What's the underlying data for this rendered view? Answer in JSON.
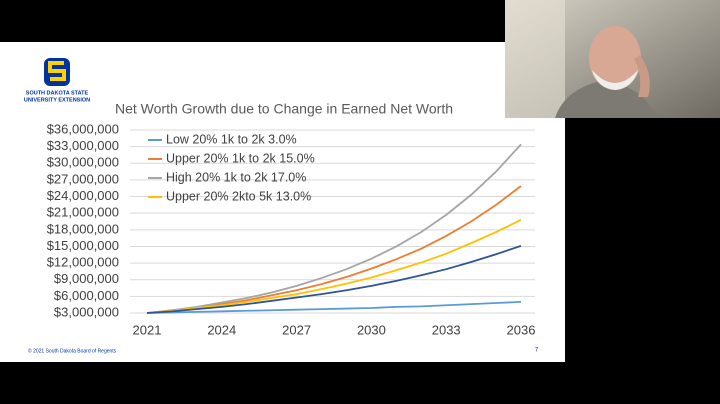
{
  "slide": {
    "logo_line1": "SOUTH DAKOTA STATE",
    "logo_line2": "UNIVERSITY EXTENSION",
    "footer": "© 2021 South Dakota Board of Regents",
    "page_number": "7"
  },
  "chart_data": {
    "type": "line",
    "title": "Net Worth Growth due to Change in Earned Net Worth",
    "x": [
      2021,
      2022,
      2023,
      2024,
      2025,
      2026,
      2027,
      2028,
      2029,
      2030,
      2031,
      2032,
      2033,
      2034,
      2035,
      2036
    ],
    "xlim": [
      2021,
      2036
    ],
    "xticks": [
      2021,
      2024,
      2027,
      2030,
      2033,
      2036
    ],
    "ylim": [
      3000000,
      36000000
    ],
    "yticks": [
      {
        "value": 3000000,
        "label": "$3,000,000"
      },
      {
        "value": 6000000,
        "label": "$6,000,000"
      },
      {
        "value": 9000000,
        "label": "$9,000,000"
      },
      {
        "value": 12000000,
        "label": "$12,000,000"
      },
      {
        "value": 15000000,
        "label": "$15,000,000"
      },
      {
        "value": 18000000,
        "label": "$18,000,000"
      },
      {
        "value": 21000000,
        "label": "$21,000,000"
      },
      {
        "value": 24000000,
        "label": "$24,000,000"
      },
      {
        "value": 27000000,
        "label": "$27,000,000"
      },
      {
        "value": 30000000,
        "label": "$30,000,000"
      },
      {
        "value": 33000000,
        "label": "$33,000,000"
      },
      {
        "value": 36000000,
        "label": "$36,000,000"
      }
    ],
    "grid": true,
    "legend": "top-left",
    "series": [
      {
        "name": "Low 20% 1k to 2k 3.0%",
        "color": "#5b9bd5",
        "values": [
          3000000,
          3100000,
          3200000,
          3300000,
          3400000,
          3500000,
          3600000,
          3700000,
          3800000,
          3900000,
          4100000,
          4200000,
          4400000,
          4600000,
          4800000,
          5000000
        ]
      },
      {
        "name": "Upper 20% 1k to 2k 15.0%",
        "color": "#ed7d31",
        "values": [
          3000000,
          3500000,
          4000000,
          4600000,
          5300000,
          6200000,
          7100000,
          8200000,
          9500000,
          11000000,
          12700000,
          14600000,
          16900000,
          19500000,
          22500000,
          25900000
        ]
      },
      {
        "name": "High 20% 1k to 2k 17.0%",
        "color": "#a5a5a5",
        "values": [
          3000000,
          3500000,
          4100000,
          4900000,
          5700000,
          6700000,
          7900000,
          9300000,
          10900000,
          12800000,
          15000000,
          17600000,
          20700000,
          24300000,
          28500000,
          33400000
        ]
      },
      {
        "name": "Upper 20% 2kto 5k 13.0%",
        "color": "#ffc000",
        "values": [
          3000000,
          3400000,
          3900000,
          4400000,
          5000000,
          5700000,
          6400000,
          7300000,
          8300000,
          9400000,
          10700000,
          12100000,
          13700000,
          15600000,
          17600000,
          19800000
        ]
      },
      {
        "color": "#2f5597",
        "values": [
          3000000,
          3300000,
          3700000,
          4100000,
          4600000,
          5200000,
          5800000,
          6400000,
          7100000,
          7900000,
          8800000,
          9800000,
          10900000,
          12200000,
          13600000,
          15100000
        ]
      }
    ]
  }
}
